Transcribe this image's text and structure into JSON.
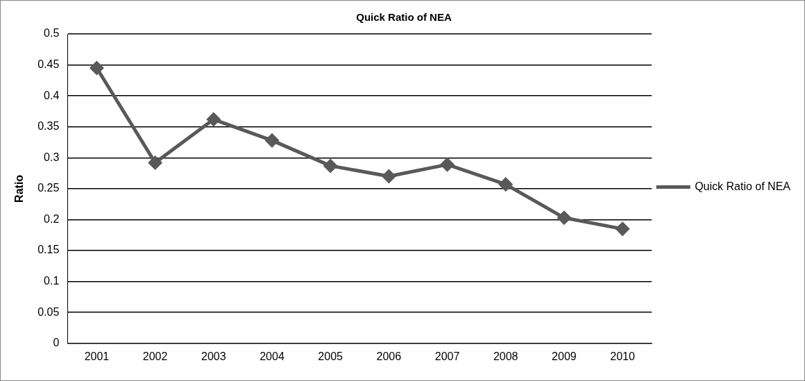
{
  "chart_data": {
    "type": "line",
    "title": "Quick Ratio of NEA",
    "ylabel": "Ratio",
    "categories": [
      "2001",
      "2002",
      "2003",
      "2004",
      "2005",
      "2006",
      "2007",
      "2008",
      "2009",
      "2010"
    ],
    "series": [
      {
        "name": "Quick Ratio of NEA",
        "color": "#595959",
        "values": [
          0.445,
          0.292,
          0.362,
          0.328,
          0.287,
          0.27,
          0.289,
          0.257,
          0.203,
          0.185
        ]
      }
    ],
    "ylim": [
      0,
      0.5
    ],
    "yticks": [
      0,
      0.05,
      0.1,
      0.15,
      0.2,
      0.25,
      0.3,
      0.35,
      0.4,
      0.45,
      0.5
    ],
    "grid": "y",
    "legend": "right",
    "marker": "diamond",
    "line_style": "solid"
  }
}
